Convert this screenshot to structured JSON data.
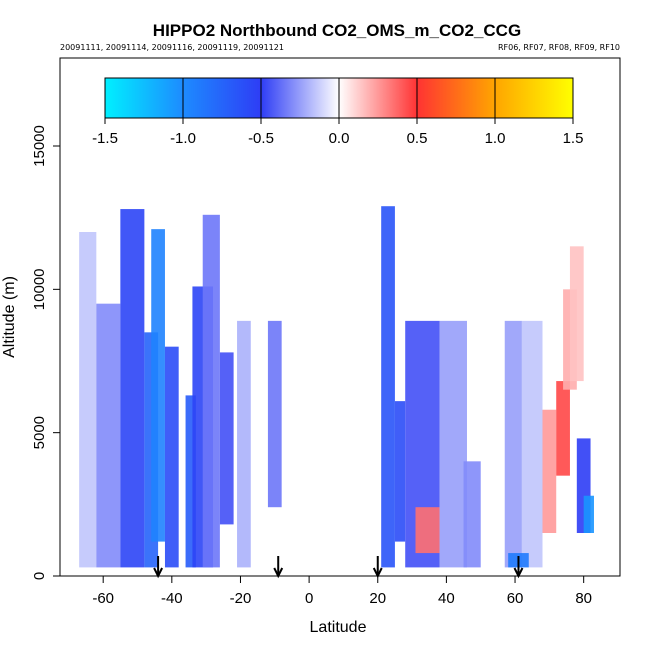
{
  "chart_data": {
    "type": "heatmap",
    "title": "HIPPO2 Northbound CO2_OMS_m_CO2_CCG",
    "subtitle_left": "20091111, 20091114, 20091116, 20091119, 20091121",
    "subtitle_right": "RF06, RF07, RF08, RF09, RF10",
    "xlabel": "Latitude",
    "ylabel": "Altitude (m)",
    "xlim": [
      -72,
      90
    ],
    "ylim": [
      0,
      18000
    ],
    "x_ticks": [
      -60,
      -40,
      -20,
      0,
      20,
      40,
      60,
      80
    ],
    "x_tick_labels": [
      "-60",
      "-40",
      "-20",
      "0",
      "20",
      "40",
      "60",
      "80"
    ],
    "y_ticks": [
      0,
      5000,
      10000,
      15000
    ],
    "y_tick_labels": [
      "0",
      "5000",
      "10000",
      "15000"
    ],
    "colorbar": {
      "range": [
        -1.5,
        1.5
      ],
      "ticks": [
        -1.5,
        -1.0,
        -0.5,
        0.0,
        0.5,
        1.0,
        1.5
      ],
      "tick_labels": [
        "-1.5",
        "-1.0",
        "-0.5",
        "0.0",
        "0.5",
        "1.0",
        "1.5"
      ],
      "colors": [
        "#00f0ff",
        "#1d8bff",
        "#2e3df5",
        "#ffffff",
        "#ff3333",
        "#ffa500",
        "#ffff00"
      ]
    },
    "arrows_latitude": [
      -44,
      -9,
      20,
      61
    ],
    "profiles": [
      {
        "lat": [
          -67,
          -62
        ],
        "alt": [
          300,
          12000
        ],
        "value": -0.15
      },
      {
        "lat": [
          -62,
          -55
        ],
        "alt": [
          300,
          9500
        ],
        "value": -0.3
      },
      {
        "lat": [
          -55,
          -48
        ],
        "alt": [
          300,
          12800
        ],
        "value": -0.55
      },
      {
        "lat": [
          -48,
          -44
        ],
        "alt": [
          300,
          8500
        ],
        "value": -0.75
      },
      {
        "lat": [
          -46,
          -42
        ],
        "alt": [
          1200,
          12100
        ],
        "value": -0.95
      },
      {
        "lat": [
          -42,
          -38
        ],
        "alt": [
          300,
          8000
        ],
        "value": -0.6
      },
      {
        "lat": [
          -36,
          -33
        ],
        "alt": [
          300,
          6300
        ],
        "value": -0.7
      },
      {
        "lat": [
          -34,
          -28
        ],
        "alt": [
          300,
          10100
        ],
        "value": -0.55
      },
      {
        "lat": [
          -31,
          -26
        ],
        "alt": [
          300,
          12600
        ],
        "value": -0.35
      },
      {
        "lat": [
          -26,
          -22
        ],
        "alt": [
          1800,
          7800
        ],
        "value": -0.45
      },
      {
        "lat": [
          -21,
          -17
        ],
        "alt": [
          300,
          8900
        ],
        "value": -0.2
      },
      {
        "lat": [
          -12,
          -8
        ],
        "alt": [
          2400,
          8900
        ],
        "value": -0.35
      },
      {
        "lat": [
          21,
          25
        ],
        "alt": [
          300,
          12900
        ],
        "value": -0.65
      },
      {
        "lat": [
          25,
          28
        ],
        "alt": [
          1200,
          6100
        ],
        "value": -0.6
      },
      {
        "lat": [
          28,
          38
        ],
        "alt": [
          300,
          8900
        ],
        "value": -0.45
      },
      {
        "lat": [
          38,
          46
        ],
        "alt": [
          300,
          8900
        ],
        "value": -0.25
      },
      {
        "lat": [
          45,
          50
        ],
        "alt": [
          300,
          4000
        ],
        "value": -0.3
      },
      {
        "lat": [
          31,
          38
        ],
        "alt": [
          800,
          2400
        ],
        "value": 0.35
      },
      {
        "lat": [
          57,
          62
        ],
        "alt": [
          300,
          8900
        ],
        "value": -0.25
      },
      {
        "lat": [
          62,
          68
        ],
        "alt": [
          300,
          8900
        ],
        "value": -0.15
      },
      {
        "lat": [
          68,
          72
        ],
        "alt": [
          1500,
          5800
        ],
        "value": 0.25
      },
      {
        "lat": [
          72,
          76
        ],
        "alt": [
          3500,
          6800
        ],
        "value": 0.45
      },
      {
        "lat": [
          74,
          78
        ],
        "alt": [
          6500,
          10000
        ],
        "value": 0.2
      },
      {
        "lat": [
          76,
          80
        ],
        "alt": [
          6800,
          11500
        ],
        "value": 0.15
      },
      {
        "lat": [
          78,
          82
        ],
        "alt": [
          1500,
          4800
        ],
        "value": -0.5
      },
      {
        "lat": [
          80,
          83
        ],
        "alt": [
          1500,
          2800
        ],
        "value": -1.05
      },
      {
        "lat": [
          58,
          64
        ],
        "alt": [
          300,
          800
        ],
        "value": -0.9
      }
    ]
  }
}
